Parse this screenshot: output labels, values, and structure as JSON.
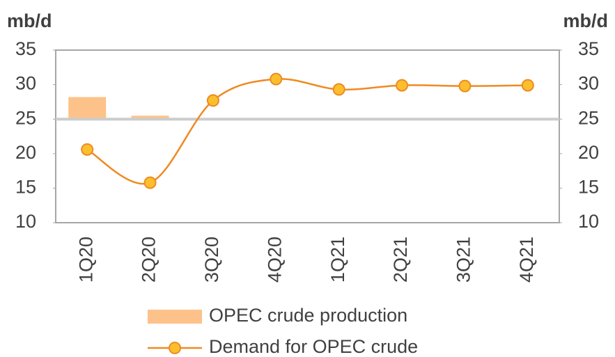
{
  "chart_data": {
    "type": "bar-line",
    "y_label": "mb/d",
    "y2_label": "mb/d",
    "categories": [
      "1Q20",
      "2Q20",
      "3Q20",
      "4Q20",
      "1Q21",
      "2Q21",
      "3Q21",
      "4Q21"
    ],
    "series": [
      {
        "name": "OPEC crude production",
        "type": "bar",
        "color": "#fdc28a",
        "values": [
          28.2,
          25.5,
          null,
          null,
          null,
          null,
          null,
          null
        ]
      },
      {
        "name": "Demand for OPEC crude",
        "type": "line",
        "color": "#ef8a22",
        "marker_color": "#fbbf2e",
        "values": [
          20.6,
          15.8,
          27.7,
          30.8,
          29.3,
          29.9,
          29.8,
          29.9
        ]
      }
    ],
    "baseline": 25,
    "baseline_color": "#cccccc",
    "ylim": [
      10,
      35
    ],
    "yticks": [
      10,
      15,
      20,
      25,
      30,
      35
    ],
    "y2lim": [
      10,
      35
    ],
    "y2ticks": [
      10,
      15,
      20,
      25,
      30,
      35
    ],
    "legend": "bottom"
  }
}
